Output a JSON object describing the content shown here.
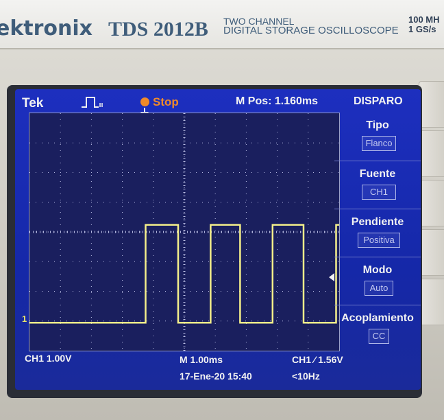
{
  "header": {
    "brand": "ektronix",
    "model": "TDS 2012B",
    "description_line1": "TWO  CHANNEL",
    "description_line2": "DIGITAL STORAGE OSCILLOSCOPE",
    "spec_line1": "100 MH",
    "spec_line2": "1 GS/s"
  },
  "screen": {
    "brand": "Tek",
    "acquisition_state": "Stop",
    "mpos": "M Pos: 1.160ms",
    "menu_title": "DISPARO",
    "menu": [
      {
        "label": "Tipo",
        "value": "Flanco"
      },
      {
        "label": "Fuente",
        "value": "CH1"
      },
      {
        "label": "Pendiente",
        "value": "Positiva"
      },
      {
        "label": "Modo",
        "value": "Auto"
      },
      {
        "label": "Acoplamiento",
        "value": "CC"
      }
    ],
    "ch1_marker": "1",
    "status": {
      "ch1_scale": "CH1  1.00V",
      "time_scale": "M 1.00ms",
      "trigger": "CH1 ⁄ 1.56V",
      "datetime": "17-Ene-20 15:40",
      "frequency": "<10Hz"
    },
    "colors": {
      "trace": "#f4ef8a",
      "stop": "#f08a2a",
      "text": "#f2f2f2"
    },
    "waveform": {
      "divisions_x": 10,
      "divisions_y": 8,
      "time_per_div_ms": 1.0,
      "volts_per_div": 1.0,
      "low_volts": 0.0,
      "high_volts": 3.3,
      "transitions_div": [
        3.75,
        4.8,
        5.85,
        6.8,
        7.85,
        8.85,
        9.9
      ]
    }
  }
}
